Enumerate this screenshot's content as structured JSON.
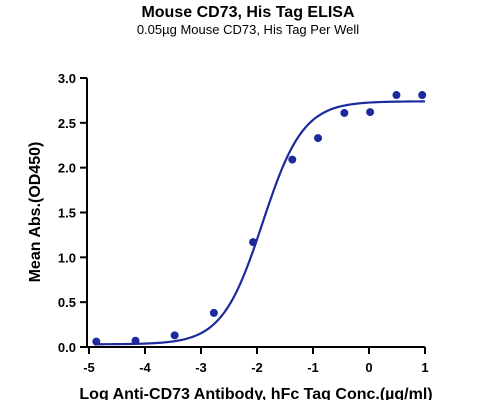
{
  "chart_data": {
    "type": "scatter",
    "title": "Mouse CD73, His Tag ELISA",
    "subtitle": "0.05µg Mouse CD73, His Tag Per Well",
    "xlabel": "Log Anti-CD73 Antibody, hFc Tag Conc.(µg/ml)",
    "ylabel": "Mean Abs.(OD450)",
    "xlim": [
      -5,
      1
    ],
    "ylim": [
      0,
      3.0
    ],
    "x_ticks": [
      -5,
      -4,
      -3,
      -2,
      -1,
      0,
      1
    ],
    "y_ticks": [
      0.0,
      0.5,
      1.0,
      1.5,
      2.0,
      2.5,
      3.0
    ],
    "y_tick_labels": [
      "0.0",
      "0.5",
      "1.0",
      "1.5",
      "2.0",
      "2.5",
      "3.0"
    ],
    "grid": false,
    "series": [
      {
        "points": [
          {
            "x": -4.87,
            "y": 0.06
          },
          {
            "x": -4.17,
            "y": 0.07
          },
          {
            "x": -3.47,
            "y": 0.13
          },
          {
            "x": -2.77,
            "y": 0.38
          },
          {
            "x": -2.07,
            "y": 1.17
          },
          {
            "x": -1.37,
            "y": 2.09
          },
          {
            "x": -0.91,
            "y": 2.33
          },
          {
            "x": -0.44,
            "y": 2.61
          },
          {
            "x": 0.02,
            "y": 2.62
          },
          {
            "x": 0.49,
            "y": 2.81
          },
          {
            "x": 0.95,
            "y": 2.81
          }
        ],
        "fit": {
          "model": "4PL",
          "bottom": 0.03,
          "top": 2.74,
          "logEC50": -1.9,
          "hill": 1.2,
          "x_range": [
            -4.9,
            1.0
          ]
        },
        "color": "#1c2a9c"
      }
    ]
  }
}
